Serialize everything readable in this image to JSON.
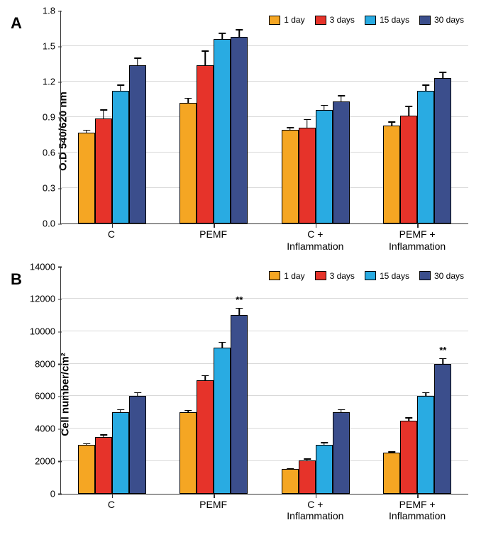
{
  "colors": {
    "day1": "#f5a623",
    "day3": "#e6332a",
    "day15": "#29abe2",
    "day30": "#3b4e8c",
    "grid": "#d9d9d9",
    "axis": "#333333",
    "bg": "#ffffff"
  },
  "legend": [
    {
      "key": "day1",
      "label": "1 day"
    },
    {
      "key": "day3",
      "label": "3 days"
    },
    {
      "key": "day15",
      "label": "15 days"
    },
    {
      "key": "day30",
      "label": "30 days"
    }
  ],
  "panelA": {
    "label": "A",
    "ylabel": "O.D 540/620 nm",
    "ylim": [
      0,
      1.8
    ],
    "ytick_step": 0.3,
    "categories": [
      "C",
      "PEMF",
      "C +\nInflammation",
      "PEMF +\nInflammation"
    ],
    "series": [
      {
        "key": "day1",
        "values": [
          0.77,
          1.02,
          0.79,
          0.83
        ],
        "errors": [
          0.03,
          0.05,
          0.03,
          0.04
        ]
      },
      {
        "key": "day3",
        "values": [
          0.89,
          1.34,
          0.81,
          0.91
        ],
        "errors": [
          0.08,
          0.13,
          0.08,
          0.09
        ]
      },
      {
        "key": "day15",
        "values": [
          1.12,
          1.56,
          0.96,
          1.12
        ],
        "errors": [
          0.06,
          0.06,
          0.05,
          0.06
        ]
      },
      {
        "key": "day30",
        "values": [
          1.34,
          1.58,
          1.03,
          1.23
        ],
        "errors": [
          0.07,
          0.07,
          0.06,
          0.06
        ]
      }
    ]
  },
  "panelB": {
    "label": "B",
    "ylabel": "Cell number/cm²",
    "ylim": [
      0,
      14000
    ],
    "ytick_step": 2000,
    "categories": [
      "C",
      "PEMF",
      "C +\nInflammation",
      "PEMF +\nInflammation"
    ],
    "series": [
      {
        "key": "day1",
        "values": [
          3000,
          5000,
          1500,
          2500
        ],
        "errors": [
          150,
          200,
          120,
          150
        ]
      },
      {
        "key": "day3",
        "values": [
          3500,
          7000,
          2050,
          4500
        ],
        "errors": [
          200,
          350,
          150,
          250
        ]
      },
      {
        "key": "day15",
        "values": [
          5000,
          9000,
          3000,
          6000
        ],
        "errors": [
          250,
          400,
          200,
          300
        ]
      },
      {
        "key": "day30",
        "values": [
          6000,
          11000,
          5000,
          8000
        ],
        "errors": [
          300,
          500,
          250,
          400
        ],
        "sig": [
          "",
          "**",
          "",
          "**"
        ]
      }
    ]
  },
  "font": {
    "panel_label_size": 22,
    "axis_label_size": 15,
    "tick_size": 13,
    "legend_size": 12,
    "x_label_size": 14
  }
}
